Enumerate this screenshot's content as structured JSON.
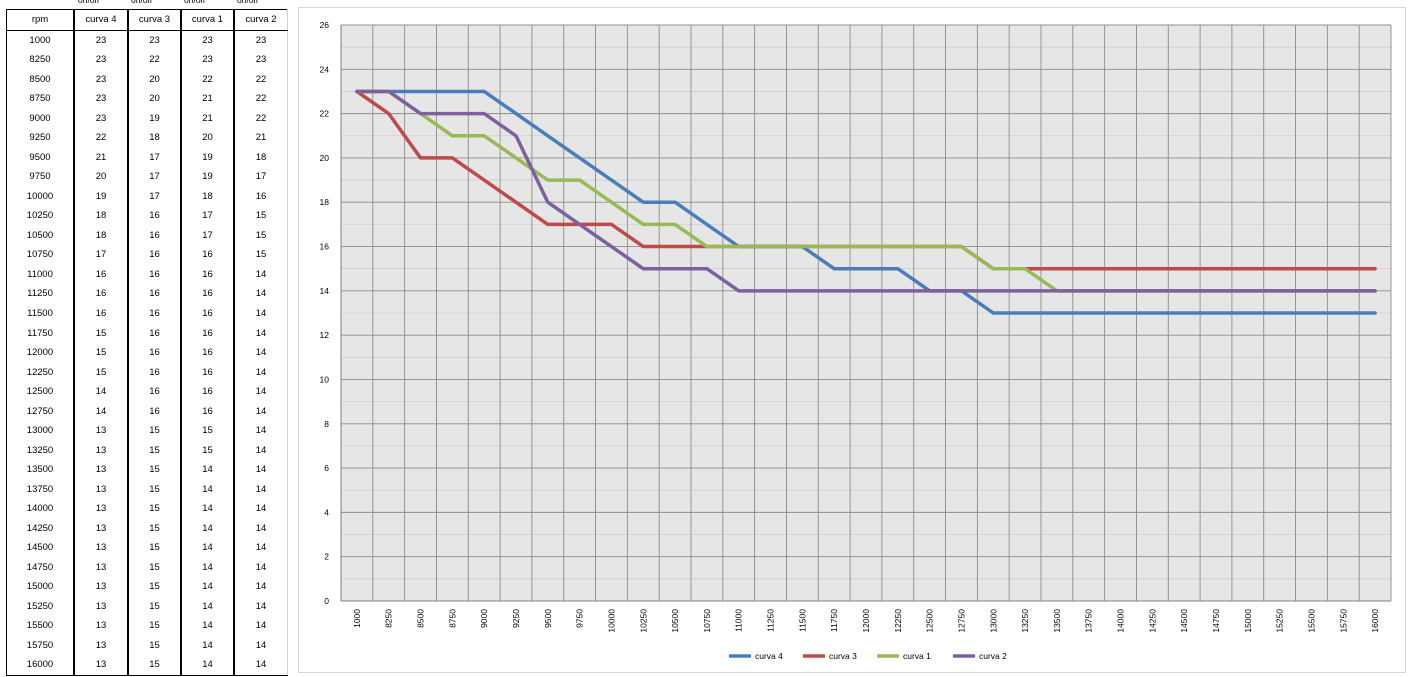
{
  "table": {
    "header_top": [
      "on/off",
      "on/off",
      "on/off",
      "on/off"
    ],
    "headers": [
      "rpm",
      "curva 4",
      "curva 3",
      "curva 1",
      "curva 2"
    ],
    "rows": [
      [
        "1000",
        "23",
        "23",
        "23",
        "23"
      ],
      [
        "8250",
        "23",
        "22",
        "23",
        "23"
      ],
      [
        "8500",
        "23",
        "20",
        "22",
        "22"
      ],
      [
        "8750",
        "23",
        "20",
        "21",
        "22"
      ],
      [
        "9000",
        "23",
        "19",
        "21",
        "22"
      ],
      [
        "9250",
        "22",
        "18",
        "20",
        "21"
      ],
      [
        "9500",
        "21",
        "17",
        "19",
        "18"
      ],
      [
        "9750",
        "20",
        "17",
        "19",
        "17"
      ],
      [
        "10000",
        "19",
        "17",
        "18",
        "16"
      ],
      [
        "10250",
        "18",
        "16",
        "17",
        "15"
      ],
      [
        "10500",
        "18",
        "16",
        "17",
        "15"
      ],
      [
        "10750",
        "17",
        "16",
        "16",
        "15"
      ],
      [
        "11000",
        "16",
        "16",
        "16",
        "14"
      ],
      [
        "11250",
        "16",
        "16",
        "16",
        "14"
      ],
      [
        "11500",
        "16",
        "16",
        "16",
        "14"
      ],
      [
        "11750",
        "15",
        "16",
        "16",
        "14"
      ],
      [
        "12000",
        "15",
        "16",
        "16",
        "14"
      ],
      [
        "12250",
        "15",
        "16",
        "16",
        "14"
      ],
      [
        "12500",
        "14",
        "16",
        "16",
        "14"
      ],
      [
        "12750",
        "14",
        "16",
        "16",
        "14"
      ],
      [
        "13000",
        "13",
        "15",
        "15",
        "14"
      ],
      [
        "13250",
        "13",
        "15",
        "15",
        "14"
      ],
      [
        "13500",
        "13",
        "15",
        "14",
        "14"
      ],
      [
        "13750",
        "13",
        "15",
        "14",
        "14"
      ],
      [
        "14000",
        "13",
        "15",
        "14",
        "14"
      ],
      [
        "14250",
        "13",
        "15",
        "14",
        "14"
      ],
      [
        "14500",
        "13",
        "15",
        "14",
        "14"
      ],
      [
        "14750",
        "13",
        "15",
        "14",
        "14"
      ],
      [
        "15000",
        "13",
        "15",
        "14",
        "14"
      ],
      [
        "15250",
        "13",
        "15",
        "14",
        "14"
      ],
      [
        "15500",
        "13",
        "15",
        "14",
        "14"
      ],
      [
        "15750",
        "13",
        "15",
        "14",
        "14"
      ],
      [
        "16000",
        "13",
        "15",
        "14",
        "14"
      ]
    ]
  },
  "chart_data": {
    "type": "line",
    "title": "",
    "xlabel": "",
    "ylabel": "",
    "ylim": [
      0,
      26
    ],
    "yticks": [
      0,
      2,
      4,
      6,
      8,
      10,
      12,
      14,
      16,
      18,
      20,
      22,
      24,
      26
    ],
    "grid": true,
    "legend": "bottom",
    "categories": [
      "1000",
      "8250",
      "8500",
      "8750",
      "9000",
      "9250",
      "9500",
      "9750",
      "10000",
      "10250",
      "10500",
      "10750",
      "11000",
      "11250",
      "11500",
      "11750",
      "12000",
      "12250",
      "12500",
      "12750",
      "13000",
      "13250",
      "13500",
      "13750",
      "14000",
      "14250",
      "14500",
      "14750",
      "15000",
      "15250",
      "15500",
      "15750",
      "16000"
    ],
    "series": [
      {
        "name": "curva 4",
        "color": "#4a7ebb",
        "values": [
          23,
          23,
          23,
          23,
          23,
          22,
          21,
          20,
          19,
          18,
          18,
          17,
          16,
          16,
          16,
          15,
          15,
          15,
          14,
          14,
          13,
          13,
          13,
          13,
          13,
          13,
          13,
          13,
          13,
          13,
          13,
          13,
          13
        ]
      },
      {
        "name": "curva 3",
        "color": "#be4b48",
        "values": [
          23,
          22,
          20,
          20,
          19,
          18,
          17,
          17,
          17,
          16,
          16,
          16,
          16,
          16,
          16,
          16,
          16,
          16,
          16,
          16,
          15,
          15,
          15,
          15,
          15,
          15,
          15,
          15,
          15,
          15,
          15,
          15,
          15
        ]
      },
      {
        "name": "curva 1",
        "color": "#98b954",
        "values": [
          23,
          23,
          22,
          21,
          21,
          20,
          19,
          19,
          18,
          17,
          17,
          16,
          16,
          16,
          16,
          16,
          16,
          16,
          16,
          16,
          15,
          15,
          14,
          14,
          14,
          14,
          14,
          14,
          14,
          14,
          14,
          14,
          14
        ]
      },
      {
        "name": "curva 2",
        "color": "#7d60a0",
        "values": [
          23,
          23,
          22,
          22,
          22,
          21,
          18,
          17,
          16,
          15,
          15,
          15,
          14,
          14,
          14,
          14,
          14,
          14,
          14,
          14,
          14,
          14,
          14,
          14,
          14,
          14,
          14,
          14,
          14,
          14,
          14,
          14,
          14
        ]
      }
    ]
  }
}
